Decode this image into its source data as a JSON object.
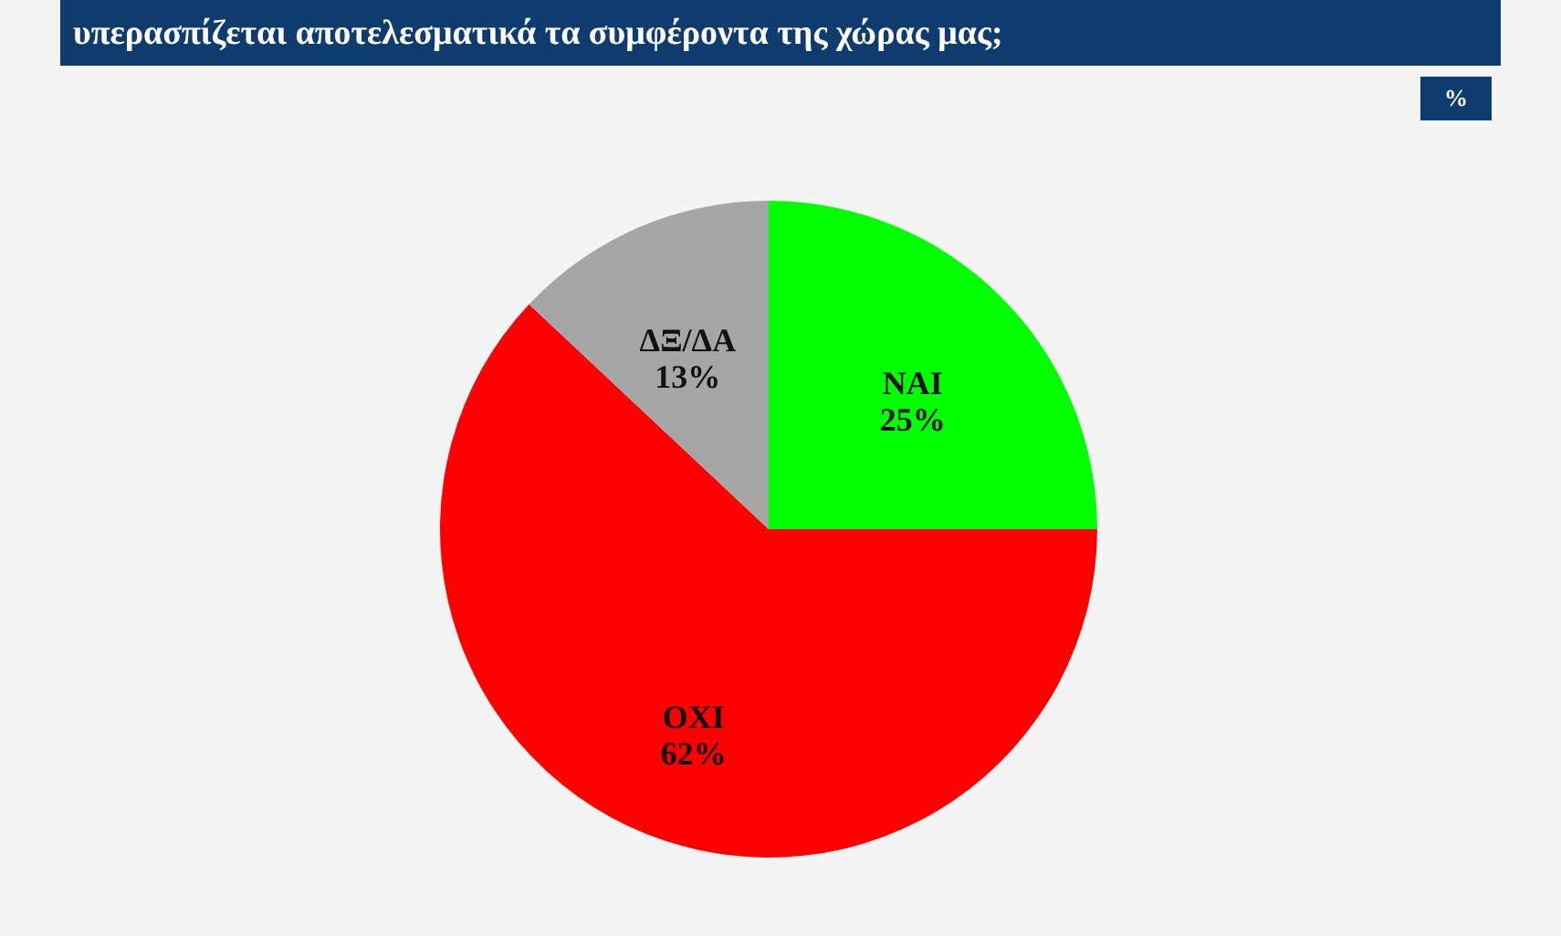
{
  "chart_data": {
    "type": "pie",
    "title": "υπερασπίζεται αποτελεσματικά τα συμφέροντα της χώρας μας;",
    "categories": [
      "ΝΑΙ",
      "ΟΧΙ",
      "ΔΞ/ΔΑ"
    ],
    "values": [
      25,
      62,
      13
    ],
    "colors": [
      "#00ff00",
      "#ff0000",
      "#a6a6a6"
    ],
    "value_labels": [
      "25%",
      "62%",
      "13%"
    ],
    "annotations": [
      "%"
    ]
  }
}
